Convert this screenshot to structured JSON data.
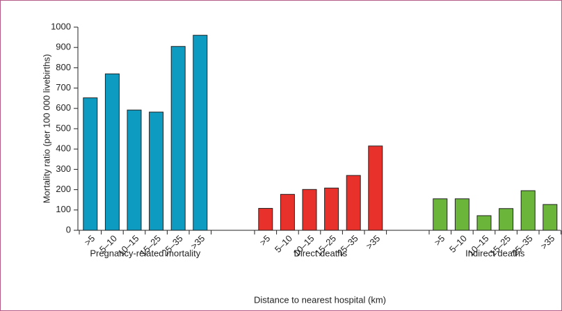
{
  "chart_data": {
    "type": "bar",
    "y_label": "Mortality ratio (per 100 000 livebirths)",
    "x_label": "Distance to nearest hospital (km)",
    "categories": [
      ">5",
      "5–10",
      "10–15",
      "15–25",
      "25–35",
      ">35"
    ],
    "series": [
      {
        "name": "Pregnancy-related mortality",
        "color": "#0e9bc2",
        "values": [
          652,
          770,
          592,
          582,
          905,
          960
        ]
      },
      {
        "name": "Direct deaths",
        "color": "#e8312a",
        "values": [
          108,
          177,
          201,
          208,
          270,
          415
        ]
      },
      {
        "name": "Indirect deaths",
        "color": "#6ab53a",
        "values": [
          155,
          155,
          72,
          107,
          195,
          127
        ]
      }
    ],
    "ylim": [
      0,
      1000
    ],
    "yticks": [
      0,
      100,
      200,
      300,
      400,
      500,
      600,
      700,
      800,
      900,
      1000
    ]
  }
}
